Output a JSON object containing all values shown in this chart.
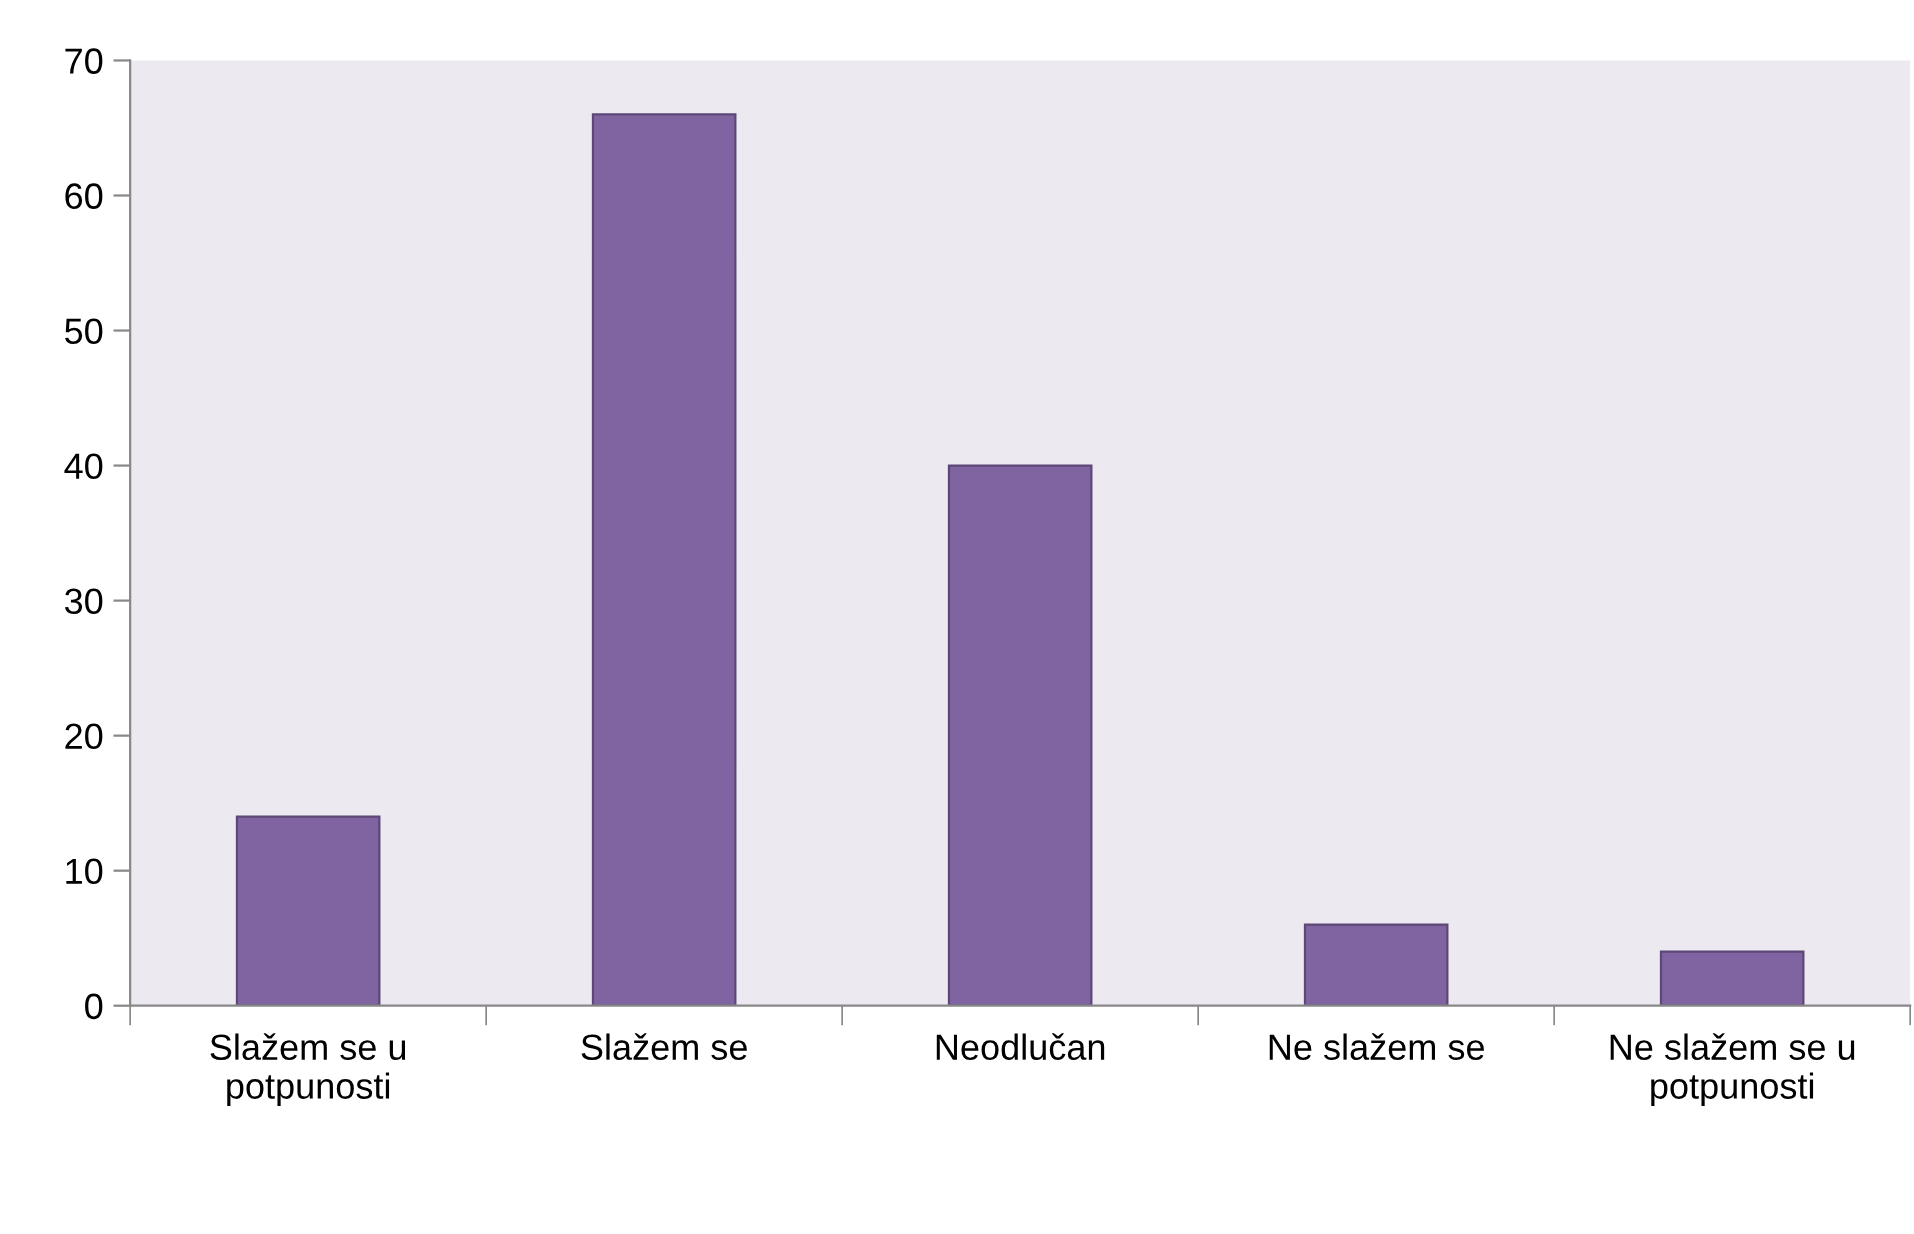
{
  "chart_data": {
    "type": "bar",
    "categories": [
      "Slažem se u\npotpunosti",
      "Slažem se",
      "Neodlučan",
      "Ne slažem se",
      "Ne slažem se u\npotpunosti"
    ],
    "values": [
      14,
      66,
      40,
      6,
      4
    ],
    "color": "#8064a2",
    "ylim": [
      0,
      70
    ],
    "yticks": [
      0,
      10,
      20,
      30,
      40,
      50,
      60,
      70
    ],
    "grid": false,
    "legend": false
  }
}
